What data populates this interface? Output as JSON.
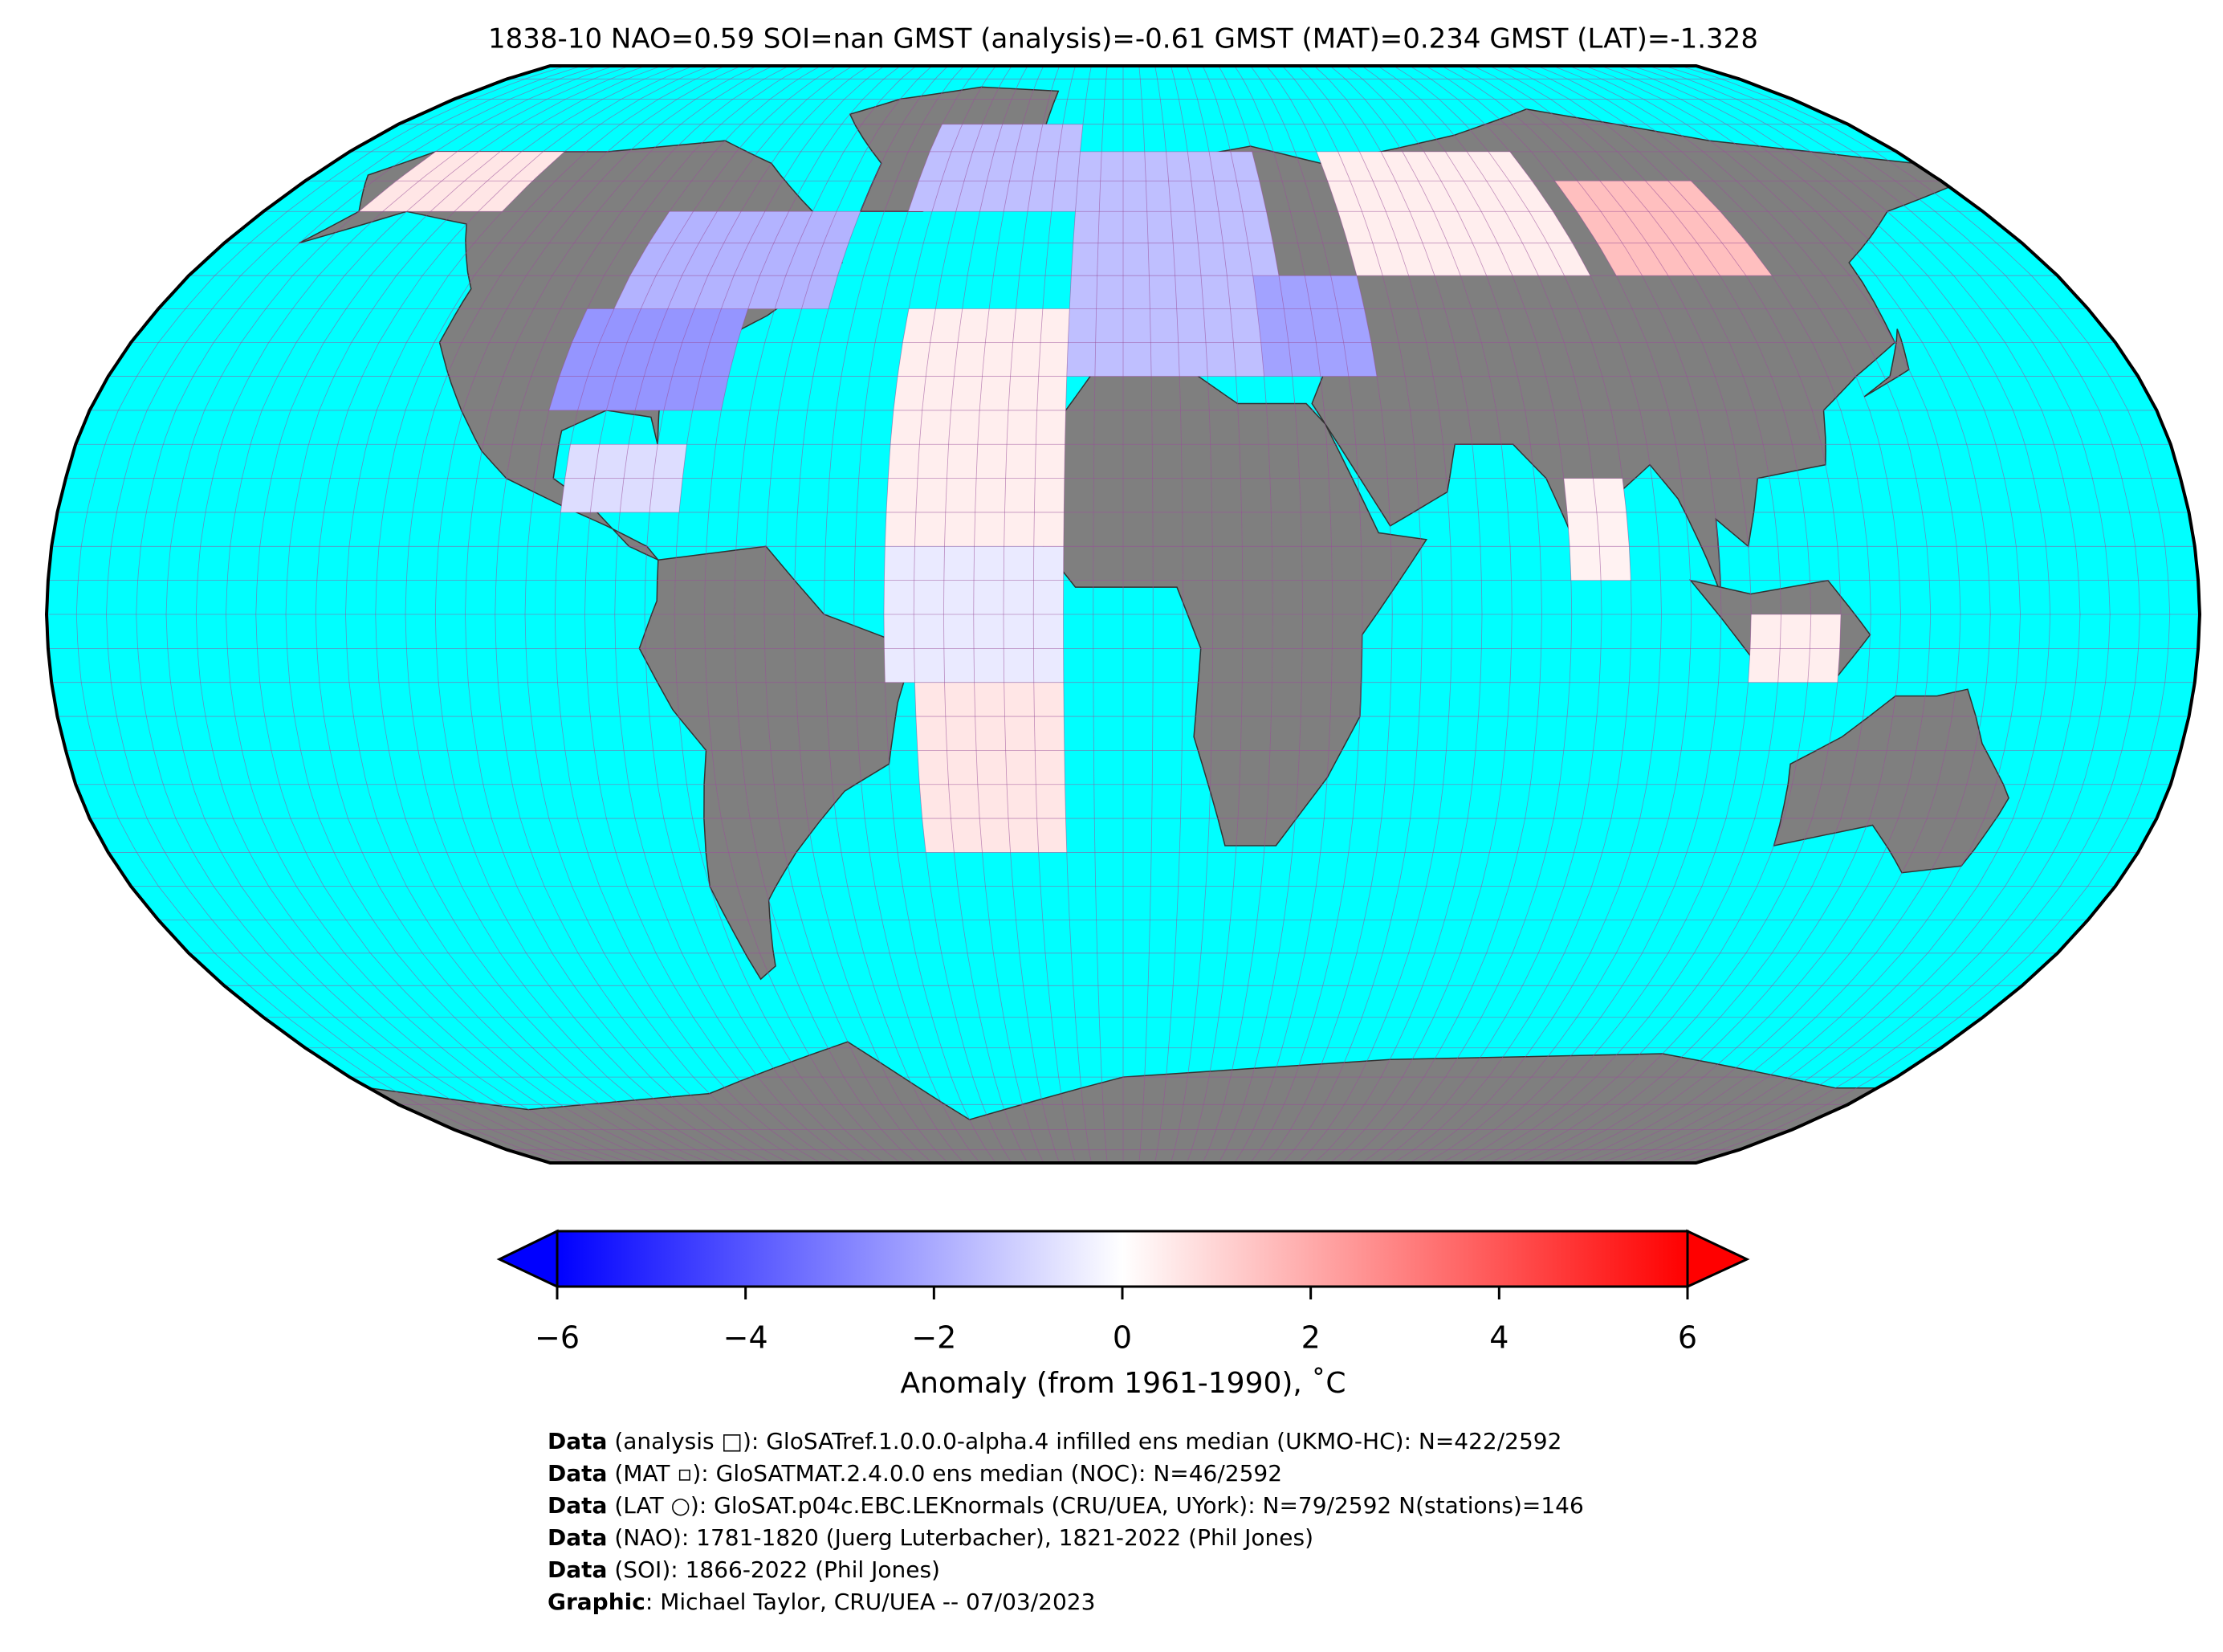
{
  "map": {
    "title": "1838-10 NAO=0.59 SOI=nan GMST (analysis)=-0.61 GMST (MAT)=0.234 GMST (LAT)=-1.328",
    "cells": [
      {
        "lon": [
          -100,
          -70
        ],
        "lat": [
          30,
          45
        ],
        "value": -2.5
      },
      {
        "lon": [
          -95,
          -55
        ],
        "lat": [
          45,
          60
        ],
        "value": -1.8
      },
      {
        "lon": [
          -160,
          -130
        ],
        "lat": [
          60,
          70
        ],
        "value": 0.6
      },
      {
        "lon": [
          -45,
          -10
        ],
        "lat": [
          60,
          75
        ],
        "value": -1.5
      },
      {
        "lon": [
          -10,
          30
        ],
        "lat": [
          35,
          70
        ],
        "value": -1.5
      },
      {
        "lon": [
          25,
          45
        ],
        "lat": [
          35,
          50
        ],
        "value": -2.2
      },
      {
        "lon": [
          45,
          90
        ],
        "lat": [
          50,
          70
        ],
        "value": 0.4
      },
      {
        "lon": [
          95,
          125
        ],
        "lat": [
          50,
          65
        ],
        "value": 1.5
      },
      {
        "lon": [
          -40,
          -10
        ],
        "lat": [
          10,
          45
        ],
        "value": 0.4
      },
      {
        "lon": [
          -40,
          -10
        ],
        "lat": [
          -10,
          10
        ],
        "value": -0.5
      },
      {
        "lon": [
          -35,
          -10
        ],
        "lat": [
          -35,
          -10
        ],
        "value": 0.6
      },
      {
        "lon": [
          -95,
          -75
        ],
        "lat": [
          15,
          25
        ],
        "value": -0.8
      },
      {
        "lon": [
          75,
          85
        ],
        "lat": [
          5,
          20
        ],
        "value": 0.3
      },
      {
        "lon": [
          105,
          120
        ],
        "lat": [
          -10,
          0
        ],
        "value": 0.4
      }
    ],
    "colorbar": {
      "label": "Anomaly (from 1961-1990), ˚C",
      "lim": [
        -6,
        6
      ],
      "ticks": [
        {
          "value": -6,
          "label": "−6"
        },
        {
          "value": -4,
          "label": "−4"
        },
        {
          "value": -2,
          "label": "−2"
        },
        0,
        2,
        4,
        6
      ]
    }
  },
  "credits": [
    {
      "label": "Data",
      "text": " (analysis □): GloSATref.1.0.0.0-alpha.4 infilled ens median (UKMO-HC): N=422/2592"
    },
    {
      "label": "Data",
      "text": " (MAT ▫): GloSATMAT.2.4.0.0 ens median (NOC): N=46/2592"
    },
    {
      "label": "Data",
      "text": " (LAT ○): GloSAT.p04c.EBC.LEKnormals (CRU/UEA, UYork): N=79/2592 N(stations)=146"
    },
    {
      "label": "Data",
      "text": " (NAO): 1781-1820 (Juerg Luterbacher), 1821-2022 (Phil Jones)"
    },
    {
      "label": "Data",
      "text": " (SOI): 1866-2022 (Phil Jones)"
    },
    {
      "label": "Graphic",
      "text": ": Michael Taylor, CRU/UEA -- 07/03/2023"
    }
  ]
}
